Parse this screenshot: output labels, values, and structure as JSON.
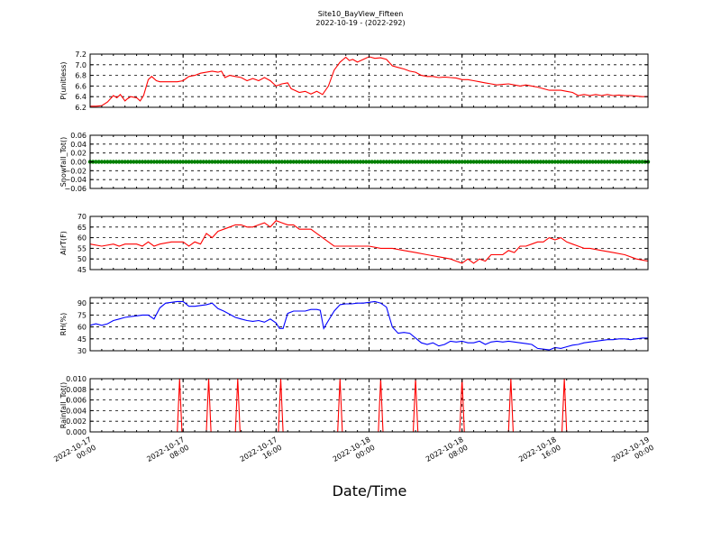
{
  "title_line1": "Site10_BayView_Fifteen",
  "title_line2": "2022-10-19 - (2022-292)",
  "xlabel": "Date/Time",
  "x_ticks": [
    {
      "t": 0,
      "line1": "2022-10-17",
      "line2": "00:00"
    },
    {
      "t": 8,
      "line1": "2022-10-17",
      "line2": "08:00"
    },
    {
      "t": 16,
      "line1": "2022-10-17",
      "line2": "16:00"
    },
    {
      "t": 24,
      "line1": "2022-10-18",
      "line2": "00:00"
    },
    {
      "t": 32,
      "line1": "2022-10-18",
      "line2": "08:00"
    },
    {
      "t": 40,
      "line1": "2022-10-18",
      "line2": "16:00"
    },
    {
      "t": 48,
      "line1": "2022-10-19",
      "line2": "00:00"
    }
  ],
  "x_range_hours": [
    0,
    48
  ],
  "colors": {
    "red": "#ff0000",
    "green": "#008000",
    "blue": "#0000ff"
  },
  "chart_data": [
    {
      "type": "line",
      "ylabel": "P(unitless)",
      "ylim": [
        6.2,
        7.2
      ],
      "yticks": [
        "6.2",
        "6.4",
        "6.6",
        "6.8",
        "7.0",
        "7.2"
      ],
      "ytick_values": [
        6.2,
        6.4,
        6.6,
        6.8,
        7.0,
        7.2
      ],
      "color": "#ff0000",
      "style": "line",
      "x": [
        0,
        0.5,
        1,
        1.5,
        2,
        2.3,
        2.6,
        3,
        3.2,
        3.5,
        4,
        4.3,
        4.6,
        5,
        5.3,
        5.7,
        6,
        6.5,
        7,
        7.5,
        8,
        8.5,
        9,
        9.5,
        10,
        10.5,
        11,
        11.3,
        11.6,
        12,
        12.5,
        13,
        13.5,
        14,
        14.5,
        15,
        15.5,
        16,
        16.5,
        17,
        17.3,
        17.6,
        18,
        18.5,
        19,
        19.5,
        20,
        20.5,
        21,
        21.5,
        22,
        22.3,
        22.6,
        23,
        23.5,
        24,
        24.5,
        25,
        25.5,
        26,
        26.5,
        27,
        27.5,
        28,
        28.5,
        29,
        29.5,
        30,
        30.5,
        31,
        31.5,
        32,
        32.5,
        33,
        33.5,
        34,
        34.5,
        35,
        35.5,
        36,
        36.5,
        37,
        37.5,
        38,
        38.5,
        39,
        39.5,
        40,
        40.5,
        41,
        41.5,
        42,
        42.5,
        43,
        43.5,
        44,
        44.5,
        45,
        45.5,
        46,
        46.5,
        47,
        47.5,
        48
      ],
      "y": [
        6.22,
        6.22,
        6.23,
        6.3,
        6.42,
        6.38,
        6.44,
        6.32,
        6.36,
        6.4,
        6.38,
        6.32,
        6.42,
        6.72,
        6.78,
        6.7,
        6.68,
        6.68,
        6.68,
        6.68,
        6.7,
        6.78,
        6.8,
        6.84,
        6.86,
        6.88,
        6.86,
        6.88,
        6.76,
        6.8,
        6.78,
        6.76,
        6.7,
        6.74,
        6.7,
        6.76,
        6.7,
        6.6,
        6.64,
        6.66,
        6.55,
        6.52,
        6.48,
        6.5,
        6.45,
        6.5,
        6.44,
        6.6,
        6.9,
        7.05,
        7.14,
        7.08,
        7.1,
        7.05,
        7.1,
        7.15,
        7.12,
        7.13,
        7.1,
        6.98,
        6.95,
        6.92,
        6.88,
        6.86,
        6.8,
        6.78,
        6.78,
        6.76,
        6.77,
        6.76,
        6.75,
        6.72,
        6.72,
        6.7,
        6.68,
        6.66,
        6.64,
        6.62,
        6.63,
        6.64,
        6.62,
        6.6,
        6.62,
        6.6,
        6.58,
        6.55,
        6.52,
        6.52,
        6.52,
        6.5,
        6.48,
        6.42,
        6.44,
        6.42,
        6.44,
        6.42,
        6.44,
        6.42,
        6.43,
        6.42,
        6.42,
        6.41,
        6.4,
        6.4
      ]
    },
    {
      "type": "scatter",
      "ylabel": "Snowfall_Tot()",
      "ylim": [
        -0.06,
        0.06
      ],
      "yticks": [
        "−0.06",
        "−0.04",
        "−0.02",
        "0.00",
        "0.02",
        "0.04",
        "0.06"
      ],
      "ytick_values": [
        -0.06,
        -0.04,
        -0.02,
        0,
        0.02,
        0.04,
        0.06
      ],
      "color": "#008000",
      "style": "dots",
      "constant_value": 0.0
    },
    {
      "type": "line",
      "ylabel": "AirT(F)",
      "ylim": [
        45,
        70
      ],
      "yticks": [
        "45",
        "50",
        "55",
        "60",
        "65",
        "70"
      ],
      "ytick_values": [
        45,
        50,
        55,
        60,
        65,
        70
      ],
      "color": "#ff0000",
      "style": "line",
      "x": [
        0,
        1,
        2,
        2.5,
        3,
        4,
        4.5,
        5,
        5.5,
        6,
        7,
        7.5,
        8,
        8.5,
        9,
        9.5,
        10,
        10.5,
        11,
        11.5,
        12,
        12.5,
        13,
        13.5,
        14,
        14.5,
        15,
        15.5,
        16,
        16.5,
        17,
        17.5,
        18,
        18.5,
        19,
        19.5,
        20,
        20.5,
        21,
        22,
        23,
        24,
        25,
        26,
        27,
        28,
        29,
        30,
        31,
        31.5,
        32,
        32.5,
        33,
        33.5,
        34,
        34.5,
        35,
        35.5,
        36,
        36.5,
        37,
        37.5,
        38,
        38.5,
        39,
        39.5,
        40,
        40.5,
        41,
        41.5,
        42,
        42.5,
        43,
        44,
        45,
        46,
        47,
        48
      ],
      "y": [
        57,
        56,
        57,
        56,
        57,
        57,
        56,
        58,
        56,
        57,
        58,
        58,
        58,
        56,
        58,
        57,
        62,
        60,
        63,
        64,
        65,
        66,
        66,
        65,
        65,
        66,
        67,
        65,
        68,
        67,
        66,
        66,
        64,
        64,
        64,
        62,
        60,
        58,
        56,
        56,
        56,
        56,
        55,
        55,
        54,
        53,
        52,
        51,
        50,
        49,
        48,
        50,
        48,
        50,
        49,
        52,
        52,
        52,
        54,
        53,
        56,
        56,
        57,
        58,
        58,
        60,
        59,
        60,
        58,
        57,
        56,
        55,
        55,
        54,
        53,
        52,
        50,
        49
      ]
    },
    {
      "type": "line",
      "ylabel": "RH(%)",
      "ylim": [
        30,
        97
      ],
      "yticks": [
        "30",
        "45",
        "60",
        "75",
        "90"
      ],
      "ytick_values": [
        30,
        45,
        60,
        75,
        90
      ],
      "color": "#0000ff",
      "style": "line",
      "x": [
        0,
        0.5,
        1,
        1.5,
        2,
        2.5,
        3,
        3.5,
        4,
        4.5,
        5,
        5.5,
        6,
        6.5,
        7,
        7.5,
        8,
        8.5,
        9,
        9.5,
        10,
        10.5,
        11,
        11.5,
        12,
        12.5,
        13,
        13.5,
        14,
        14.5,
        15,
        15.5,
        16,
        16.3,
        16.6,
        17,
        17.5,
        18,
        18.5,
        19,
        19.5,
        19.8,
        20.1,
        20.5,
        21,
        21.5,
        22,
        22.5,
        23,
        23.5,
        24,
        24.5,
        25,
        25.5,
        26,
        26.5,
        27,
        27.5,
        28,
        28.5,
        29,
        29.5,
        30,
        30.5,
        31,
        31.5,
        32,
        32.5,
        33,
        33.5,
        34,
        34.5,
        35,
        35.5,
        36,
        36.5,
        37,
        37.5,
        38,
        38.5,
        39,
        39.5,
        40,
        40.5,
        41,
        41.5,
        42,
        42.5,
        43,
        43.5,
        44,
        44.5,
        45,
        45.5,
        46,
        46.5,
        47,
        47.5,
        48
      ],
      "y": [
        62,
        64,
        62,
        64,
        68,
        70,
        72,
        73,
        74,
        75,
        75,
        70,
        84,
        90,
        91,
        92,
        92,
        86,
        86,
        87,
        88,
        90,
        83,
        80,
        76,
        72,
        70,
        68,
        67,
        68,
        66,
        70,
        65,
        58,
        58,
        77,
        80,
        80,
        80,
        82,
        82,
        81,
        58,
        68,
        80,
        88,
        89,
        89,
        90,
        90,
        91,
        92,
        90,
        85,
        60,
        52,
        53,
        52,
        46,
        40,
        38,
        40,
        36,
        38,
        42,
        41,
        42,
        40,
        40,
        42,
        38,
        41,
        42,
        41,
        42,
        41,
        40,
        39,
        38,
        33,
        32,
        31,
        34,
        33,
        35,
        37,
        38,
        40,
        41,
        42,
        43,
        44,
        44,
        45,
        45,
        44,
        45,
        46,
        46
      ]
    },
    {
      "type": "line",
      "ylabel": "Rainfall_Tot()",
      "ylim": [
        0,
        0.01
      ],
      "yticks": [
        "0.000",
        "0.002",
        "0.004",
        "0.006",
        "0.008",
        "0.010"
      ],
      "ytick_values": [
        0,
        0.002,
        0.004,
        0.006,
        0.008,
        0.01
      ],
      "color": "#ff0000",
      "style": "spikes",
      "spikes_at_hours": [
        7.7,
        10.2,
        12.7,
        16.4,
        21.5,
        25,
        28,
        32,
        36.2,
        40.8
      ],
      "spike_value": 0.01,
      "spike_half_width_hours": 0.2
    }
  ]
}
